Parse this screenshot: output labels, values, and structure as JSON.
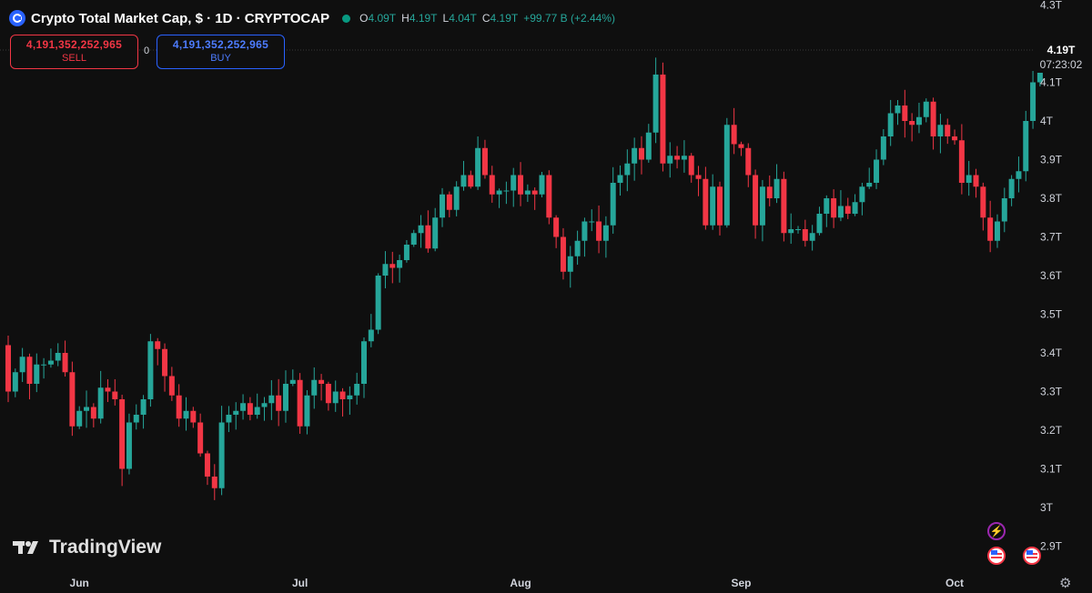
{
  "header": {
    "title": "Crypto Total Market Cap, $ · 1D · CRYPTOCAP",
    "ohlc": [
      {
        "key": "O",
        "value": "4.09T"
      },
      {
        "key": "H",
        "value": "4.19T"
      },
      {
        "key": "L",
        "value": "4.04T"
      },
      {
        "key": "C",
        "value": "4.19T"
      }
    ],
    "change": "+99.77 B (+2.44%)"
  },
  "trade": {
    "sell_price": "4,191,352,252,965",
    "sell_label": "SELL",
    "buy_price": "4,191,352,252,965",
    "buy_label": "BUY",
    "spread": "0"
  },
  "price_tag": {
    "price": "4.19T",
    "countdown": "07:23:02"
  },
  "watermark": "TradingView",
  "colors": {
    "background": "#0f0f0f",
    "up": "#26a69a",
    "down": "#f23645",
    "text": "#d1d4dc"
  },
  "icons": [
    "tradingview-logo-icon",
    "lightning-icon",
    "us-flag-icon",
    "settings-icon"
  ],
  "chart_data": {
    "type": "candlestick",
    "y_unit": "T",
    "ylim": [
      2.85,
      4.32
    ],
    "y_ticks": [
      "4.3T",
      "4.1T",
      "4T",
      "3.9T",
      "3.8T",
      "3.7T",
      "3.6T",
      "3.5T",
      "3.4T",
      "3.3T",
      "3.2T",
      "3.1T",
      "3T",
      "2.9T"
    ],
    "x_ticks": [
      "Jun",
      "Jul",
      "Aug",
      "Sep",
      "Oct"
    ],
    "grid": false,
    "closes": [
      3.3,
      3.35,
      3.39,
      3.32,
      3.37,
      3.37,
      3.38,
      3.4,
      3.35,
      3.21,
      3.25,
      3.26,
      3.23,
      3.31,
      3.3,
      3.28,
      3.1,
      3.22,
      3.24,
      3.28,
      3.43,
      3.41,
      3.34,
      3.29,
      3.23,
      3.25,
      3.22,
      3.14,
      3.08,
      3.05,
      3.22,
      3.24,
      3.25,
      3.27,
      3.24,
      3.26,
      3.27,
      3.29,
      3.25,
      3.32,
      3.33,
      3.21,
      3.29,
      3.33,
      3.32,
      3.27,
      3.3,
      3.28,
      3.29,
      3.32,
      3.43,
      3.46,
      3.6,
      3.63,
      3.62,
      3.64,
      3.68,
      3.71,
      3.73,
      3.67,
      3.75,
      3.81,
      3.77,
      3.83,
      3.86,
      3.83,
      3.93,
      3.86,
      3.81,
      3.82,
      3.82,
      3.86,
      3.81,
      3.82,
      3.81,
      3.86,
      3.75,
      3.7,
      3.61,
      3.65,
      3.69,
      3.74,
      3.74,
      3.69,
      3.73,
      3.84,
      3.86,
      3.89,
      3.93,
      3.9,
      3.97,
      4.12,
      3.89,
      3.91,
      3.9,
      3.91,
      3.86,
      3.85,
      3.73,
      3.83,
      3.73,
      3.99,
      3.94,
      3.93,
      3.86,
      3.73,
      3.83,
      3.8,
      3.85,
      3.71,
      3.72,
      3.72,
      3.69,
      3.71,
      3.76,
      3.8,
      3.75,
      3.78,
      3.76,
      3.79,
      3.83,
      3.84,
      3.9,
      3.96,
      4.02,
      4.04,
      4.0,
      3.99,
      4.01,
      4.05,
      3.96,
      3.99,
      3.96,
      3.95,
      3.84,
      3.86,
      3.83,
      3.75,
      3.69,
      3.74,
      3.8,
      3.85,
      3.87,
      4.0,
      4.1,
      4.19
    ]
  }
}
